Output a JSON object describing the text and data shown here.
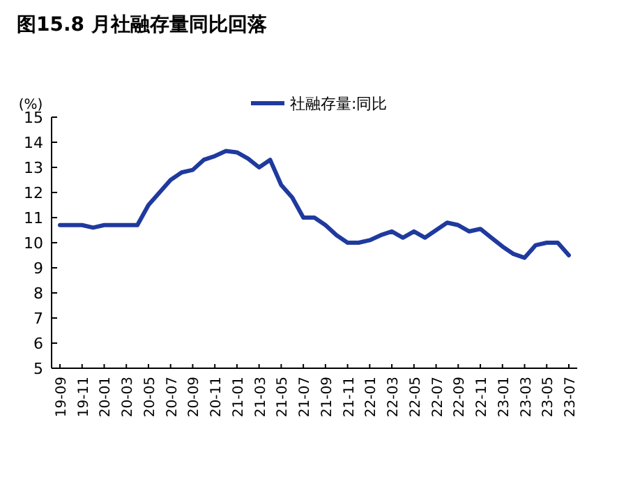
{
  "chart_data": {
    "type": "line",
    "title": "图15.8 月社融存量同比回落",
    "ylabel": "(%)",
    "categories": [
      "19-09",
      null,
      "19-11",
      null,
      "20-01",
      null,
      "20-03",
      null,
      "20-05",
      null,
      "20-07",
      null,
      "20-09",
      null,
      "20-11",
      null,
      "21-01",
      null,
      "21-03",
      null,
      "21-05",
      null,
      "21-07",
      null,
      "21-09",
      null,
      "21-11",
      null,
      "22-01",
      null,
      "22-03",
      null,
      "22-05",
      null,
      "22-07",
      null,
      "22-09",
      null,
      "22-11",
      null,
      "23-01",
      null,
      "23-03",
      null,
      "23-05",
      null,
      "23-07"
    ],
    "series": [
      {
        "name": "社融存量:同比",
        "color": "#1f3a9e",
        "values": [
          10.7,
          10.7,
          10.7,
          10.6,
          10.7,
          10.7,
          10.7,
          10.7,
          11.5,
          12.0,
          12.5,
          12.8,
          12.9,
          13.3,
          13.45,
          13.65,
          13.6,
          13.35,
          13.0,
          13.3,
          12.3,
          11.8,
          11.0,
          11.0,
          10.7,
          10.3,
          10.0,
          10.0,
          10.1,
          10.3,
          10.45,
          10.2,
          10.45,
          10.2,
          10.5,
          10.8,
          10.7,
          10.45,
          10.55,
          10.2,
          9.85,
          9.55,
          9.4,
          9.9,
          10.0,
          10.0,
          9.5
        ]
      }
    ],
    "ylim": [
      5,
      15
    ],
    "yticks": [
      5,
      6,
      7,
      8,
      9,
      10,
      11,
      12,
      13,
      14,
      15
    ],
    "legend": "top",
    "grid": false,
    "marker": "none",
    "line_style": "solid"
  }
}
